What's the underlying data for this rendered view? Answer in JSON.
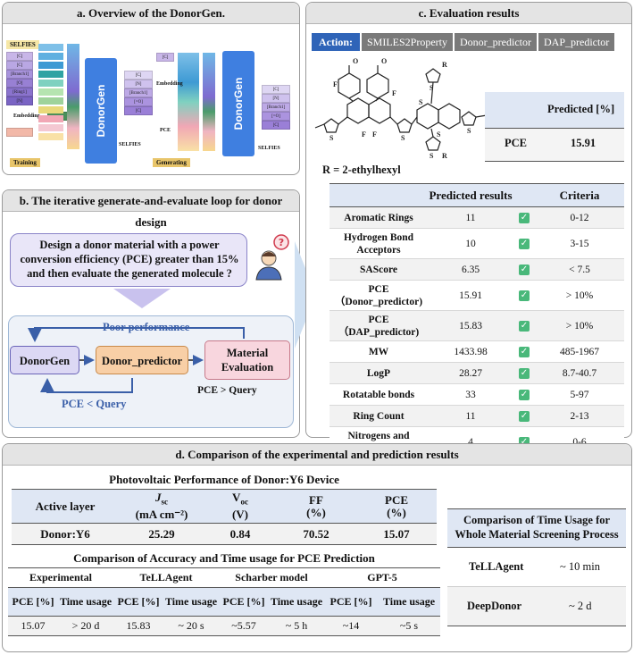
{
  "panel_a": {
    "title": "a. Overview of the DonorGen.",
    "left_tokens": [
      "SELFIES",
      "[C]",
      "[C]",
      "[Branch1]",
      "[O]",
      "[Ring1]",
      "[N]"
    ],
    "embedding": "Embedding",
    "pce": "PCE",
    "training": "Training",
    "generating": "Generating",
    "donorgen": "DonorGen",
    "selfies": "SELFIES",
    "col_tokens": [
      "[C]",
      "[N]",
      "[Branch1]",
      "[=O]",
      "[C]"
    ]
  },
  "panel_b": {
    "title": "b. The iterative generate-and-evaluate loop for donor design",
    "prompt": "Design a donor material with a power conversion efficiency (PCE) greater than 15% and then evaluate the generated molecule ?",
    "poor_performance": "Poor performance",
    "donorgen": "DonorGen",
    "donor_predictor": "Donor_predictor",
    "material_evaluation": "Material Evaluation",
    "pce_gt": "PCE > Query",
    "pce_lt": "PCE < Query"
  },
  "panel_c": {
    "title": "c. Evaluation results",
    "action_label": "Action:",
    "actions": [
      "SMILES2Property",
      "Donor_predictor",
      "DAP_predictor"
    ],
    "r_group": "R = 2-ethylhexyl",
    "pred_header": "Predicted",
    "pred_unit": "[%]",
    "pce_label": "PCE",
    "pce_value": "15.91",
    "table_headers": [
      "Predicted results",
      "Criteria"
    ],
    "rows": [
      {
        "name": "Aromatic Rings",
        "value": "11",
        "criteria": "0-12"
      },
      {
        "name": "Hydrogen Bond Acceptors",
        "value": "10",
        "criteria": "3-15"
      },
      {
        "name": "SAScore",
        "value": "6.35",
        "criteria": "< 7.5"
      },
      {
        "name": "PCE （Donor_predictor)",
        "value": "15.91",
        "criteria": "> 10%"
      },
      {
        "name": "PCE （DAP_predictor)",
        "value": "15.83",
        "criteria": "> 10%"
      },
      {
        "name": "MW",
        "value": "1433.98",
        "criteria": "485-1967"
      },
      {
        "name": "LogP",
        "value": "28.27",
        "criteria": "8.7-40.7"
      },
      {
        "name": "Rotatable bonds",
        "value": "33",
        "criteria": "5-97"
      },
      {
        "name": "Ring Count",
        "value": "11",
        "criteria": "2-13"
      },
      {
        "name": "Nitrogens and Oxygens",
        "value": "4",
        "criteria": "0-6"
      }
    ],
    "check_icon": "check-icon"
  },
  "panel_d": {
    "title": "d.   Comparison of the experimental and prediction results",
    "pv_title": "Photovoltaic Performance of Donor:Y6 Device",
    "pv_headers": {
      "active_layer": "Active layer",
      "jsc": "J",
      "jsc_sub": "sc",
      "jsc_unit": "(mA cm⁻²)",
      "voc": "V",
      "voc_sub": "oc",
      "voc_unit": "(V)",
      "ff": "FF",
      "ff_unit": "(%)",
      "pce": "PCE",
      "pce_unit": "(%)"
    },
    "pv_row": {
      "layer": "Donor:Y6",
      "jsc": "25.29",
      "voc": "0.84",
      "ff": "70.52",
      "pce": "15.07"
    },
    "cmp_title": "Comparison of Accuracy and Time usage for PCE Prediction",
    "methods": [
      "Experimental",
      "TeLLAgent",
      "Scharber model",
      "GPT-5"
    ],
    "sub_headers": [
      "PCE [%]",
      "Time usage",
      "PCE [%]",
      "Time usage",
      "PCE [%]",
      "Time usage",
      "PCE [%]",
      "Time usage"
    ],
    "cmp_values": [
      "15.07",
      "> 20 d",
      "15.83",
      "~ 20 s",
      "~5.57",
      "~ 5 h",
      "~14",
      "~5 s"
    ],
    "time_title": "Comparison of Time Usage for Whole Material Screening Process",
    "time_rows": [
      {
        "name": "TeLLAgent",
        "value": "~ 10 min"
      },
      {
        "name": "DeepDonor",
        "value": "~ 2 d"
      }
    ]
  }
}
